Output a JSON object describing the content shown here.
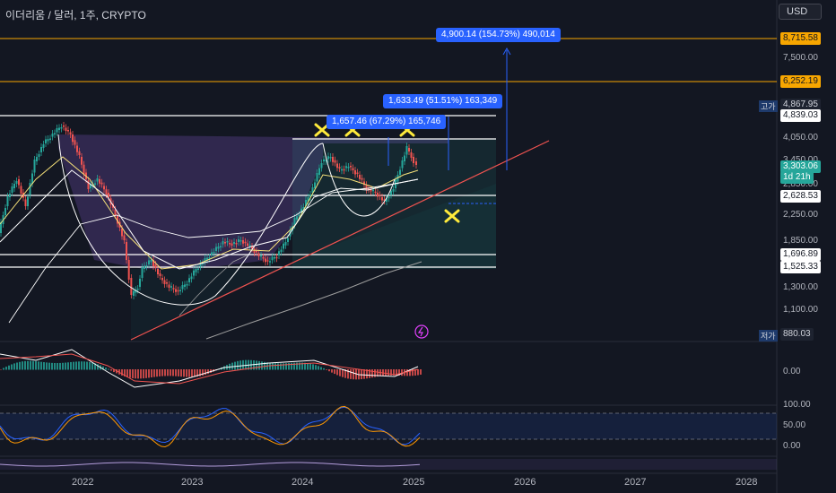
{
  "header": {
    "symbol_title": "이더리움 / 달러, 1주, CRYPTO",
    "currency": "USD"
  },
  "price_scale": {
    "ticks": [
      "7,500.00",
      "4,050.00",
      "3,450.00",
      "2,850.00",
      "2,250.00",
      "1,850.00",
      "1,300.00",
      "1,100.00",
      "0.00",
      "100.00",
      "50.00",
      "0.00"
    ],
    "levels": {
      "l1": "8,715.58",
      "l2": "6,252.19",
      "l3": "4,867.95",
      "l4": "4,839.03",
      "current": "3,303.06",
      "countdown": "1d 21h",
      "l5": "2,628.53",
      "l6": "1,696.89",
      "l7": "1,525.33",
      "low": "880.03"
    },
    "high_tag": "고가",
    "low_tag": "저가"
  },
  "measurements": {
    "m1": "4,900.14 (154.73%) 490,014",
    "m2": "1,633.49 (51.51%) 163,349",
    "m3": "1,657.46 (67.29%) 165,746"
  },
  "time_axis": [
    "2022",
    "2023",
    "2024",
    "2025",
    "2026",
    "2027",
    "2028"
  ],
  "colors": {
    "bg": "#131722",
    "up": "#26a69a",
    "down": "#ef5350",
    "accent": "#2962ff",
    "orange": "#f7a600",
    "marker": "#ffeb3b"
  }
}
